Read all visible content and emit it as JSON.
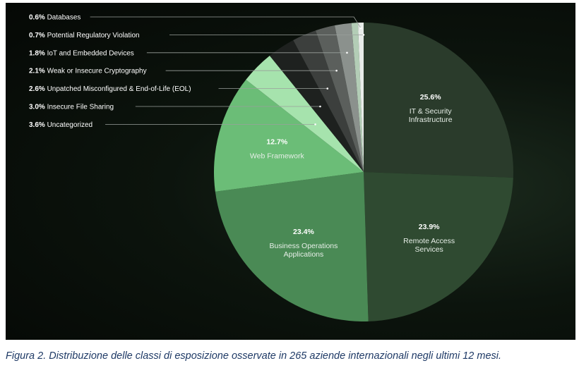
{
  "chart_data": {
    "type": "pie",
    "title": "",
    "slices": [
      {
        "label": "IT & Security Infrastructure",
        "value": 25.6,
        "value_label": "25.6%",
        "label_lines": [
          "IT & Security",
          "Infrastructure"
        ],
        "color": "#2a3b2b"
      },
      {
        "label": "Remote Access Services",
        "value": 23.9,
        "value_label": "23.9%",
        "label_lines": [
          "Remote Access",
          "Services"
        ],
        "color": "#2f4a31"
      },
      {
        "label": "Business Operations Applications",
        "value": 23.4,
        "value_label": "23.4%",
        "label_lines": [
          "Business Operations",
          "Applications"
        ],
        "color": "#4a8a55"
      },
      {
        "label": "Web Framework",
        "value": 12.7,
        "value_label": "12.7%",
        "label_lines": [
          "Web Framework"
        ],
        "color": "#6bbd77"
      },
      {
        "label": "Uncategorized",
        "value": 3.6,
        "value_label": "3.6%",
        "color": "#a6e3ad"
      },
      {
        "label": "Insecure File Sharing",
        "value": 3.0,
        "value_label": "3.0%",
        "color": "#1e211f"
      },
      {
        "label": "Unpatched Misconfigured & End-of-Life (EOL)",
        "value": 2.6,
        "value_label": "2.6%",
        "color": "#3c3f3d"
      },
      {
        "label": "Weak or Insecure Cryptography",
        "value": 2.1,
        "value_label": "2.1%",
        "color": "#5b5f5c"
      },
      {
        "label": "IoT and Embedded Devices",
        "value": 1.8,
        "value_label": "1.8%",
        "color": "#8b918d"
      },
      {
        "label": "Potential Regulatory Violation",
        "value": 0.7,
        "value_label": "0.7%",
        "color": "#b3cdb6"
      },
      {
        "label": "Databases",
        "value": 0.6,
        "value_label": "0.6%",
        "color": "#e8ece9"
      }
    ],
    "legend_order": [
      "Databases",
      "Potential Regulatory Violation",
      "IoT and Embedded Devices",
      "Weak or Insecure Cryptography",
      "Unpatched Misconfigured & End-of-Life (EOL)",
      "Insecure File Sharing",
      "Uncategorized"
    ],
    "legend_placement": "top-left"
  },
  "caption": "Figura 2. Distribuzione delle classi di esposizione osservate in 265 aziende internazionali negli ultimi 12 mesi."
}
